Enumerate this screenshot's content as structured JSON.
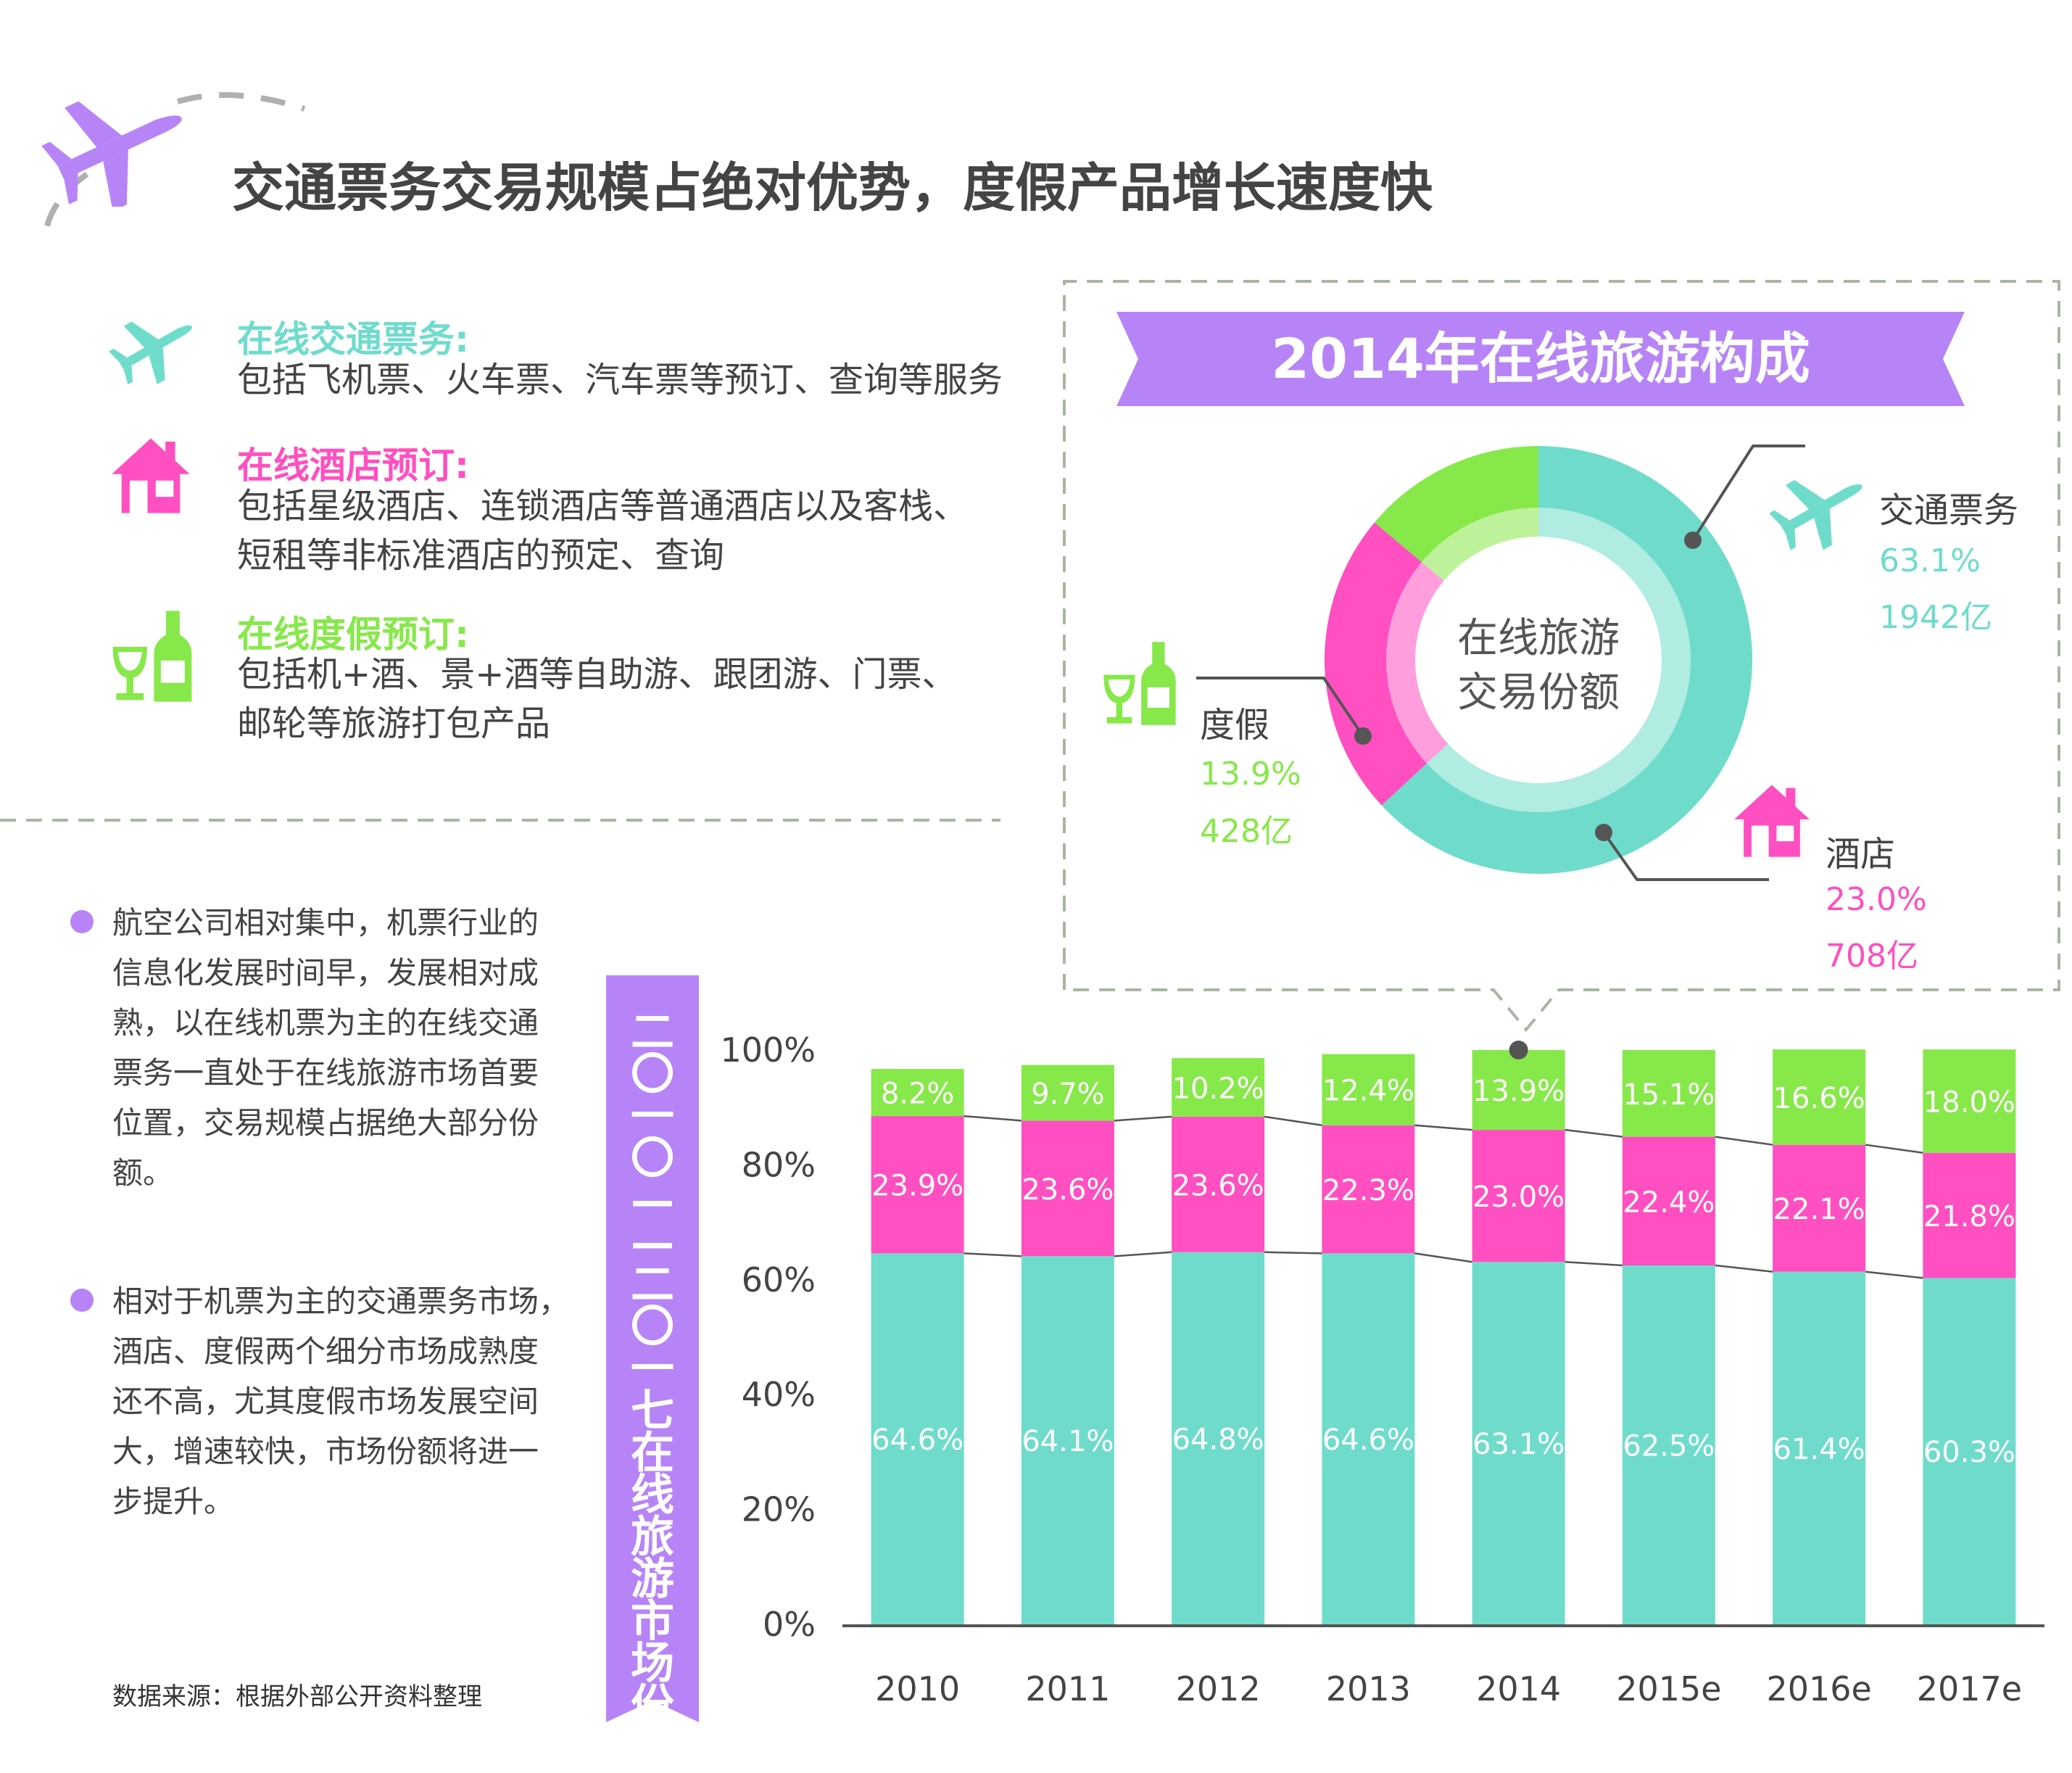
{
  "header": {
    "title": "交通票务交易规模占绝对优势，度假产品增长速度快"
  },
  "categories": [
    {
      "title": "在线交通票务:",
      "lines": [
        "包括飞机票、火车票、汽车票等预订、查询等服务"
      ],
      "color": "#6fdccb",
      "icon": "airplane-icon"
    },
    {
      "title": "在线酒店预订:",
      "lines": [
        "包括星级酒店、连锁酒店等普通酒店以及客栈、",
        "短租等非标准酒店的预定、查询"
      ],
      "color": "#ff4fc0",
      "icon": "house-icon"
    },
    {
      "title": "在线度假预订:",
      "lines": [
        "包括机+酒、景+酒等自助游、跟团游、门票、",
        "邮轮等旅游打包产品"
      ],
      "color": "#87e84a",
      "icon": "wine-bottle-icon"
    }
  ],
  "notes": [
    {
      "lines": [
        "航空公司相对集中，机票行业的",
        "信息化发展时间早，发展相对成",
        "熟，以在线机票为主的在线交通",
        "票务一直处于在线旅游市场首要",
        "位置，交易规模占据绝大部分份",
        "额。"
      ]
    },
    {
      "lines": [
        "相对于机票为主的交通票务市场，",
        "酒店、度假两个细分市场成熟度",
        "还不高，尤其度假市场发展空间",
        "大，增速较快，市场份额将进一",
        "步提升。"
      ]
    }
  ],
  "source": "数据来源：根据外部公开资料整理",
  "vertical_banner": "二〇一〇——二〇一七在线旅游市场份额",
  "colors": {
    "transport": "#6fdccb",
    "hotel": "#ff4fc0",
    "vacation": "#87e84a",
    "accent": "#b784f7",
    "dash": "#a9b5a3"
  },
  "chart_data": [
    {
      "type": "pie",
      "title": "2014年在线旅游构成",
      "center_label": [
        "在线旅游",
        "交易份额"
      ],
      "slices": [
        {
          "name": "交通票务",
          "percent": 63.1,
          "percent_label": "63.1%",
          "amount_label": "1942亿"
        },
        {
          "name": "酒店",
          "percent": 23.0,
          "percent_label": "23.0%",
          "amount_label": "708亿"
        },
        {
          "name": "度假",
          "percent": 13.9,
          "percent_label": "13.9%",
          "amount_label": "428亿"
        }
      ]
    },
    {
      "type": "bar",
      "stacked": true,
      "title": "二〇一〇——二〇一七在线旅游市场份额",
      "categories": [
        "2010",
        "2011",
        "2012",
        "2013",
        "2014",
        "2015e",
        "2016e",
        "2017e"
      ],
      "series": [
        {
          "name": "交通票务",
          "values": [
            64.6,
            64.1,
            64.8,
            64.6,
            63.1,
            62.5,
            61.4,
            60.3
          ],
          "labels": [
            "64.6%",
            "64.1%",
            "64.8%",
            "64.6%",
            "63.1%",
            "62.5%",
            "61.4%",
            "60.3%"
          ]
        },
        {
          "name": "酒店",
          "values": [
            23.9,
            23.6,
            23.6,
            22.3,
            23.0,
            22.4,
            22.1,
            21.8
          ],
          "labels": [
            "23.9%",
            "23.6%",
            "23.6%",
            "22.3%",
            "23.0%",
            "22.4%",
            "22.1%",
            "21.8%"
          ]
        },
        {
          "name": "度假",
          "values": [
            8.2,
            9.7,
            10.2,
            12.4,
            13.9,
            15.1,
            16.6,
            18.0
          ],
          "labels": [
            "8.2%",
            "9.7%",
            "10.2%",
            "12.4%",
            "13.9%",
            "15.1%",
            "16.6%",
            "18.0%"
          ]
        }
      ],
      "ylim": [
        0,
        100
      ],
      "yticks": [
        "0%",
        "20%",
        "40%",
        "60%",
        "80%",
        "100%"
      ]
    }
  ]
}
